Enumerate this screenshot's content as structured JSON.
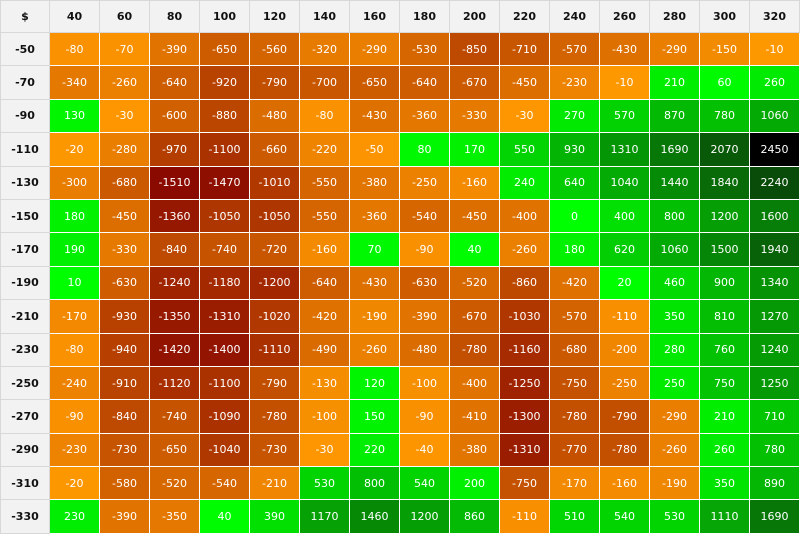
{
  "corner": "$",
  "columns": [
    "40",
    "60",
    "80",
    "100",
    "120",
    "140",
    "160",
    "180",
    "200",
    "220",
    "240",
    "260",
    "280",
    "300",
    "320"
  ],
  "rows": [
    {
      "label": "-50",
      "values": [
        "-80",
        "-70",
        "-390",
        "-650",
        "-560",
        "-320",
        "-290",
        "-530",
        "-850",
        "-710",
        "-570",
        "-430",
        "-290",
        "-150",
        "-10"
      ]
    },
    {
      "label": "-70",
      "values": [
        "-340",
        "-260",
        "-640",
        "-920",
        "-790",
        "-700",
        "-650",
        "-640",
        "-670",
        "-450",
        "-230",
        "-10",
        "210",
        "60",
        "260"
      ]
    },
    {
      "label": "-90",
      "values": [
        "130",
        "-30",
        "-600",
        "-880",
        "-480",
        "-80",
        "-430",
        "-360",
        "-330",
        "-30",
        "270",
        "570",
        "870",
        "780",
        "1060"
      ]
    },
    {
      "label": "-110",
      "values": [
        "-20",
        "-280",
        "-970",
        "-1100",
        "-660",
        "-220",
        "-50",
        "80",
        "170",
        "550",
        "930",
        "1310",
        "1690",
        "2070",
        "2450"
      ]
    },
    {
      "label": "-130",
      "values": [
        "-300",
        "-680",
        "-1510",
        "-1470",
        "-1010",
        "-550",
        "-380",
        "-250",
        "-160",
        "240",
        "640",
        "1040",
        "1440",
        "1840",
        "2240"
      ]
    },
    {
      "label": "-150",
      "values": [
        "180",
        "-450",
        "-1360",
        "-1050",
        "-1050",
        "-550",
        "-360",
        "-540",
        "-450",
        "-400",
        "0",
        "400",
        "800",
        "1200",
        "1600"
      ]
    },
    {
      "label": "-170",
      "values": [
        "190",
        "-330",
        "-840",
        "-740",
        "-720",
        "-160",
        "70",
        "-90",
        "40",
        "-260",
        "180",
        "620",
        "1060",
        "1500",
        "1940"
      ]
    },
    {
      "label": "-190",
      "values": [
        "10",
        "-630",
        "-1240",
        "-1180",
        "-1200",
        "-640",
        "-430",
        "-630",
        "-520",
        "-860",
        "-420",
        "20",
        "460",
        "900",
        "1340"
      ]
    },
    {
      "label": "-210",
      "values": [
        "-170",
        "-930",
        "-1350",
        "-1310",
        "-1020",
        "-420",
        "-190",
        "-390",
        "-670",
        "-1030",
        "-570",
        "-110",
        "350",
        "810",
        "1270"
      ]
    },
    {
      "label": "-230",
      "values": [
        "-80",
        "-940",
        "-1420",
        "-1400",
        "-1110",
        "-490",
        "-260",
        "-480",
        "-780",
        "-1160",
        "-680",
        "-200",
        "280",
        "760",
        "1240"
      ]
    },
    {
      "label": "-250",
      "values": [
        "-240",
        "-910",
        "-1120",
        "-1100",
        "-790",
        "-130",
        "120",
        "-100",
        "-400",
        "-1250",
        "-750",
        "-250",
        "250",
        "750",
        "1250"
      ]
    },
    {
      "label": "-270",
      "values": [
        "-90",
        "-840",
        "-740",
        "-1090",
        "-780",
        "-100",
        "150",
        "-90",
        "-410",
        "-1300",
        "-780",
        "-790",
        "-290",
        "210",
        "710"
      ]
    },
    {
      "label": "-290",
      "values": [
        "-230",
        "-730",
        "-650",
        "-1040",
        "-730",
        "-30",
        "220",
        "-40",
        "-380",
        "-1310",
        "-770",
        "-780",
        "-260",
        "260",
        "780"
      ]
    },
    {
      "label": "-310",
      "values": [
        "-20",
        "-580",
        "-520",
        "-540",
        "-210",
        "530",
        "800",
        "540",
        "200",
        "-750",
        "-170",
        "-160",
        "-190",
        "350",
        "890"
      ]
    },
    {
      "label": "-330",
      "values": [
        "230",
        "-390",
        "-350",
        "40",
        "390",
        "1170",
        "1460",
        "1200",
        "860",
        "-110",
        "510",
        "540",
        "530",
        "1110",
        "1690"
      ]
    }
  ],
  "colors": {
    "negative_light": "#ff9900",
    "negative_dark": "#8b0a00",
    "positive_light": "#00ff00",
    "positive_dark": "#0a3a0a",
    "max_cell": "#000000"
  }
}
